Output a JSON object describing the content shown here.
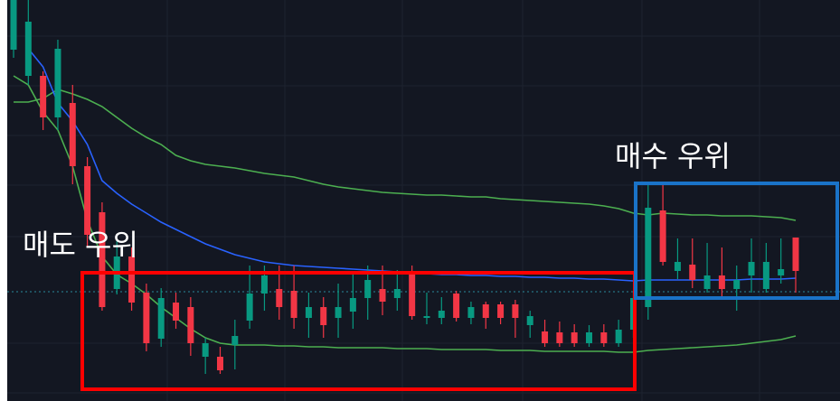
{
  "chart_data": {
    "type": "candlestick",
    "annotations": [
      "매도 우위",
      "매수 우위"
    ],
    "ylim": [
      0,
      444
    ],
    "up_color": "#089981",
    "down_color": "#f23645",
    "open": [
      389,
      360,
      360,
      314,
      330,
      260,
      209,
      124,
      160,
      120,
      69,
      109,
      104,
      49,
      49,
      62,
      89,
      119,
      124,
      122,
      92,
      104,
      92,
      99,
      114,
      124,
      114,
      144,
      92,
      92,
      119,
      92,
      107,
      107,
      107,
      84,
      77,
      76,
      76,
      64,
      76,
      64,
      79,
      104,
      211,
      144,
      151,
      124,
      139,
      124,
      139,
      124,
      139,
      181
    ],
    "high": [
      444,
      444,
      365,
      400,
      350,
      270,
      220,
      180,
      170,
      130,
      125,
      120,
      115,
      70,
      60,
      90,
      150,
      150,
      150,
      150,
      120,
      115,
      130,
      140,
      150,
      150,
      145,
      150,
      120,
      115,
      122,
      110,
      110,
      110,
      112,
      100,
      90,
      88,
      85,
      84,
      85,
      90,
      120,
      240,
      240,
      180,
      180,
      175,
      170,
      150,
      180,
      175,
      180,
      181
    ],
    "low": [
      380,
      350,
      300,
      300,
      240,
      170,
      100,
      118,
      100,
      55,
      60,
      80,
      50,
      30,
      30,
      35,
      80,
      100,
      90,
      80,
      70,
      70,
      70,
      80,
      90,
      95,
      100,
      90,
      85,
      85,
      88,
      85,
      80,
      85,
      70,
      70,
      60,
      60,
      60,
      60,
      60,
      60,
      70,
      90,
      150,
      135,
      125,
      120,
      115,
      100,
      120,
      120,
      130,
      120
    ],
    "close": [
      444,
      420,
      314,
      390,
      260,
      184,
      104,
      160,
      109,
      64,
      114,
      89,
      64,
      64,
      34,
      72,
      119,
      139,
      104,
      92,
      104,
      84,
      104,
      114,
      134,
      110,
      124,
      94,
      94,
      100,
      92,
      104,
      92,
      92,
      92,
      94,
      64,
      64,
      64,
      76,
      64,
      79,
      114,
      214,
      154,
      154,
      134,
      139,
      124,
      134,
      154,
      154,
      146,
      144
    ],
    "bands": [
      {
        "color": "#4caf50",
        "values": [
          331,
          331,
          335,
          345,
          340,
          334,
          326,
          314,
          302,
          292,
          284,
          272,
          266,
          262,
          260,
          258,
          255,
          252,
          250,
          248,
          244,
          240,
          237,
          235,
          233,
          231,
          230,
          229,
          228,
          228,
          227,
          226,
          226,
          224,
          223,
          222,
          221,
          220,
          219,
          218,
          216,
          213,
          208,
          206,
          208,
          207,
          206,
          206,
          205,
          205,
          205,
          204,
          203,
          200
        ]
      },
      {
        "color": "#4caf50",
        "values": [
          360,
          350,
          320,
          300,
          260,
          200,
          160,
          140,
          130,
          118,
          104,
          92,
          80,
          70,
          64,
          62,
          62,
          62,
          61,
          61,
          60,
          60,
          59,
          59,
          59,
          59,
          58,
          58,
          58,
          57,
          57,
          57,
          57,
          56,
          56,
          56,
          55,
          55,
          55,
          55,
          55,
          54,
          54,
          56,
          57,
          58,
          59,
          60,
          61,
          62,
          64,
          66,
          68,
          72
        ]
      },
      {
        "color": "#2962ff",
        "values": [
          null,
          390,
          370,
          330,
          310,
          284,
          244,
          230,
          218,
          208,
          198,
          190,
          182,
          174,
          168,
          162,
          158,
          154,
          152,
          150,
          149,
          148,
          147,
          146,
          145,
          144,
          143,
          142,
          141,
          140,
          140,
          139,
          139,
          138,
          138,
          137,
          137,
          136,
          136,
          135,
          135,
          134,
          133,
          134,
          134,
          134,
          134,
          134,
          134,
          134,
          135,
          135,
          135,
          136
        ]
      }
    ]
  }
}
